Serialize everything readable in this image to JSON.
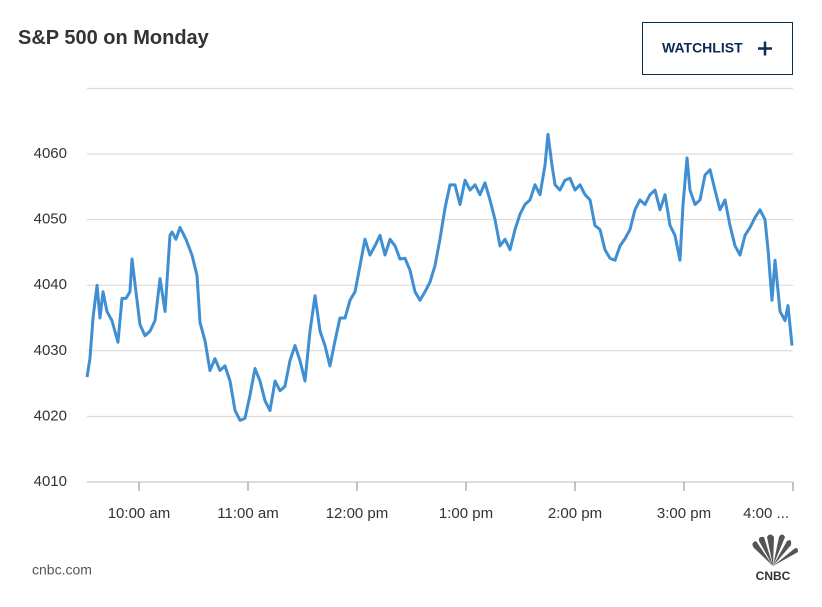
{
  "title": "S&P 500 on Monday",
  "button": "WATCHLIST",
  "source": "cnbc.com",
  "logo": "CNBC",
  "chart_data": {
    "type": "line",
    "color": "#3f8fd2",
    "grid": true,
    "xlim": [
      9.5,
      16
    ],
    "ylim": [
      4010,
      4070
    ],
    "yticks": [
      4010,
      4020,
      4030,
      4040,
      4050,
      4060
    ],
    "xticks": [
      {
        "value": 10,
        "label": "10:00 am"
      },
      {
        "value": 11,
        "label": "11:00 am"
      },
      {
        "value": 12,
        "label": "12:00 pm"
      },
      {
        "value": 13,
        "label": "1:00 pm"
      },
      {
        "value": 14,
        "label": "2:00 pm"
      },
      {
        "value": 15,
        "label": "3:00 pm"
      },
      {
        "value": 16,
        "label": "4:00 ..."
      }
    ],
    "x": [
      9.523,
      9.55,
      9.578,
      9.615,
      9.642,
      9.67,
      9.706,
      9.752,
      9.807,
      9.844,
      9.881,
      9.917,
      9.936,
      9.972,
      10.009,
      10.055,
      10.101,
      10.147,
      10.193,
      10.239,
      10.284,
      10.303,
      10.339,
      10.376,
      10.431,
      10.486,
      10.532,
      10.56,
      10.606,
      10.651,
      10.697,
      10.743,
      10.789,
      10.835,
      10.881,
      10.927,
      10.972,
      11.018,
      11.064,
      11.11,
      11.156,
      11.202,
      11.248,
      11.294,
      11.339,
      11.385,
      11.431,
      11.477,
      11.523,
      11.569,
      11.615,
      11.661,
      11.706,
      11.752,
      11.798,
      11.844,
      11.89,
      11.936,
      11.982,
      12.028,
      12.073,
      12.119,
      12.165,
      12.211,
      12.257,
      12.303,
      12.349,
      12.394,
      12.44,
      12.486,
      12.532,
      12.578,
      12.624,
      12.67,
      12.716,
      12.761,
      12.807,
      12.853,
      12.899,
      12.945,
      12.991,
      13.037,
      13.083,
      13.128,
      13.174,
      13.22,
      13.266,
      13.312,
      13.358,
      13.404,
      13.45,
      13.495,
      13.541,
      13.587,
      13.633,
      13.679,
      13.725,
      13.752,
      13.789,
      13.817,
      13.862,
      13.908,
      13.954,
      14.0,
      14.046,
      14.092,
      14.138,
      14.183,
      14.229,
      14.275,
      14.321,
      14.367,
      14.413,
      14.459,
      14.505,
      14.55,
      14.596,
      14.642,
      14.688,
      14.734,
      14.78,
      14.826,
      14.872,
      14.917,
      14.963,
      14.991,
      15.028,
      15.055,
      15.101,
      15.147,
      15.193,
      15.239,
      15.284,
      15.33,
      15.376,
      15.422,
      15.468,
      15.514,
      15.56,
      15.606,
      15.651,
      15.697,
      15.743,
      15.771,
      15.807,
      15.835,
      15.881,
      15.927,
      15.954,
      15.991
    ],
    "values": [
      4026,
      4028.8,
      4035,
      4040,
      4035,
      4039,
      4036,
      4034.6,
      4031.3,
      4038,
      4038,
      4039,
      4044,
      4039,
      4034,
      4032.3,
      4033,
      4034.6,
      4041,
      4036,
      4047.6,
      4048.1,
      4047,
      4048.8,
      4047,
      4044.6,
      4041.5,
      4034.3,
      4031.5,
      4027,
      4028.8,
      4027,
      4027.7,
      4025.4,
      4020.9,
      4019.4,
      4019.7,
      4023.2,
      4027.3,
      4025.4,
      4022.4,
      4020.9,
      4025.4,
      4023.9,
      4024.6,
      4028.5,
      4030.8,
      4028.5,
      4025.4,
      4033,
      4038.4,
      4033,
      4030.8,
      4027.7,
      4031.5,
      4035,
      4035,
      4037.7,
      4039,
      4043,
      4047,
      4044.6,
      4046,
      4047.6,
      4044.6,
      4047,
      4046,
      4044,
      4044.1,
      4042.3,
      4039,
      4037.7,
      4039,
      4040.5,
      4043,
      4047,
      4051.7,
      4055.3,
      4055.3,
      4052.3,
      4056,
      4054.5,
      4055.3,
      4053.8,
      4055.6,
      4053,
      4050,
      4046,
      4047,
      4045.4,
      4048.5,
      4050.8,
      4052.3,
      4053,
      4055.3,
      4053.8,
      4058.3,
      4063,
      4058.3,
      4055.3,
      4054.5,
      4056,
      4056.3,
      4054.5,
      4055.3,
      4053.8,
      4053,
      4049.1,
      4048.5,
      4045.4,
      4044.1,
      4043.8,
      4046,
      4047.1,
      4048.5,
      4051.5,
      4053,
      4052.3,
      4053.8,
      4054.5,
      4051.5,
      4053.8,
      4049.1,
      4047.6,
      4043.8,
      4052.3,
      4059.4,
      4054.5,
      4052.3,
      4053,
      4056.8,
      4057.6,
      4054.5,
      4051.5,
      4053,
      4049.1,
      4046,
      4044.6,
      4047.6,
      4048.8,
      4050.3,
      4051.5,
      4050,
      4045.4,
      4037.7,
      4043.8,
      4036,
      4034.6,
      4036.9,
      4030.8
    ]
  }
}
